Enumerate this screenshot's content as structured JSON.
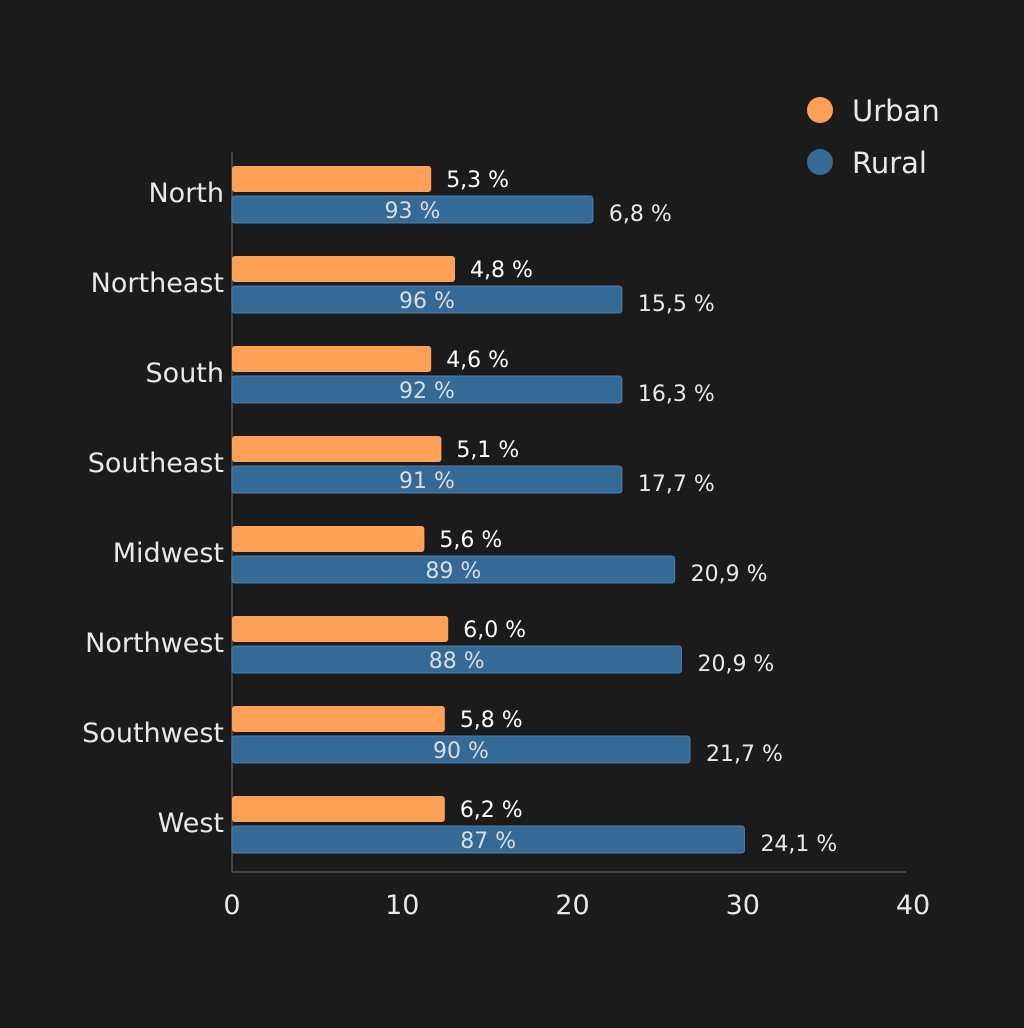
{
  "chart_data": {
    "type": "bar",
    "orientation": "horizontal",
    "title": "",
    "xlabel": "",
    "ylabel": "",
    "xlim": [
      0,
      40
    ],
    "xticks": [
      "0",
      "10",
      "20",
      "30",
      "40"
    ],
    "xtick_values": [
      0,
      10,
      20,
      30,
      40
    ],
    "grid": false,
    "legend_position": "top-right",
    "categories": [
      "North",
      "Northeast",
      "South",
      "Southeast",
      "Midwest",
      "Northwest",
      "Southwest",
      "West"
    ],
    "series": [
      {
        "name": "Urban",
        "color": "#FFA057",
        "values": [
          11.7,
          13.1,
          11.7,
          12.3,
          11.3,
          12.7,
          12.5,
          12.5
        ],
        "labels": [
          "5,3 %",
          "4,8 %",
          "4,6 %",
          "5,1 %",
          "5,6 %",
          "6,0 %",
          "5,8 %",
          "6,2 %"
        ]
      },
      {
        "name": "Rural",
        "color": "#366A96",
        "values": [
          21.2,
          22.9,
          22.9,
          22.9,
          26.0,
          26.4,
          26.9,
          30.1
        ],
        "inner_labels": [
          "93 %",
          "96 %",
          "92 %",
          "91 %",
          "89 %",
          "88 %",
          "90 %",
          "87 %"
        ],
        "labels": [
          "6,8 %",
          "15,5 %",
          "16,3 %",
          "17,7 %",
          "20,9 %",
          "20,9 %",
          "21,7 %",
          "24,1 %"
        ]
      }
    ]
  }
}
